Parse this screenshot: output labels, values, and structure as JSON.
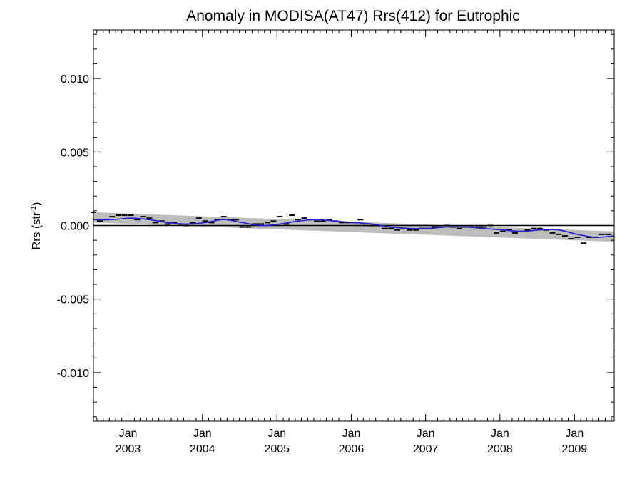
{
  "chart_data": {
    "type": "line",
    "title": "Anomaly in MODISA(AT47) Rrs(412) for Eutrophic",
    "ylabel_main": "Rrs (str",
    "ylabel_sup": "-1",
    "ylabel_close": ")",
    "ylim": [
      -0.0133,
      0.0133
    ],
    "xlim": [
      "2002-07-15",
      "2009-07-15"
    ],
    "grid": false,
    "yticks": [
      {
        "value": 0.01,
        "label": "0.010"
      },
      {
        "value": 0.005,
        "label": "0.005"
      },
      {
        "value": 0.0,
        "label": "0.000"
      },
      {
        "value": -0.005,
        "label": "-0.005"
      },
      {
        "value": -0.01,
        "label": "-0.010"
      }
    ],
    "xticks": [
      {
        "date": "2003-01-01",
        "month": "Jan",
        "year": "2003"
      },
      {
        "date": "2004-01-01",
        "month": "Jan",
        "year": "2004"
      },
      {
        "date": "2005-01-01",
        "month": "Jan",
        "year": "2005"
      },
      {
        "date": "2006-01-01",
        "month": "Jan",
        "year": "2006"
      },
      {
        "date": "2007-01-01",
        "month": "Jan",
        "year": "2007"
      },
      {
        "date": "2008-01-01",
        "month": "Jan",
        "year": "2008"
      },
      {
        "date": "2009-01-01",
        "month": "Jan",
        "year": "2009"
      }
    ],
    "monthly_anomaly": {
      "x": [
        "2002-07-15",
        "2002-08-15",
        "2002-09-15",
        "2002-10-15",
        "2002-11-15",
        "2002-12-15",
        "2003-01-15",
        "2003-02-15",
        "2003-03-15",
        "2003-04-15",
        "2003-05-15",
        "2003-06-15",
        "2003-07-15",
        "2003-08-15",
        "2003-09-15",
        "2003-10-15",
        "2003-11-15",
        "2003-12-15",
        "2004-01-15",
        "2004-02-15",
        "2004-03-15",
        "2004-04-15",
        "2004-05-15",
        "2004-06-15",
        "2004-07-15",
        "2004-08-15",
        "2004-09-15",
        "2004-10-15",
        "2004-11-15",
        "2004-12-15",
        "2005-01-15",
        "2005-02-15",
        "2005-03-15",
        "2005-04-15",
        "2005-05-15",
        "2005-06-15",
        "2005-07-15",
        "2005-08-15",
        "2005-09-15",
        "2005-10-15",
        "2005-11-15",
        "2005-12-15",
        "2006-01-15",
        "2006-02-15",
        "2006-03-15",
        "2006-04-15",
        "2006-05-15",
        "2006-06-15",
        "2006-07-15",
        "2006-08-15",
        "2006-09-15",
        "2006-10-15",
        "2006-11-15",
        "2006-12-15",
        "2007-01-15",
        "2007-02-15",
        "2007-03-15",
        "2007-04-15",
        "2007-05-15",
        "2007-06-15",
        "2007-07-15",
        "2007-08-15",
        "2007-09-15",
        "2007-10-15",
        "2007-11-15",
        "2007-12-15",
        "2008-01-15",
        "2008-02-15",
        "2008-03-15",
        "2008-04-15",
        "2008-05-15",
        "2008-06-15",
        "2008-07-15",
        "2008-08-15",
        "2008-09-15",
        "2008-10-15",
        "2008-11-15",
        "2008-12-15",
        "2009-01-15",
        "2009-02-15",
        "2009-03-15",
        "2009-04-15",
        "2009-05-15",
        "2009-06-15"
      ],
      "y": [
        0.0009,
        0.0003,
        0.0004,
        0.0006,
        0.0007,
        0.0007,
        0.0007,
        0.0004,
        0.0006,
        0.0005,
        0.0002,
        0.0003,
        0.0001,
        0.0002,
        0.0001,
        0.0,
        0.0002,
        0.0005,
        0.0003,
        0.0002,
        0.0004,
        0.0006,
        0.0004,
        0.0004,
        -0.0001,
        -0.0001,
        0.0001,
        0.0001,
        0.0002,
        0.0003,
        0.0006,
        0.0001,
        0.0007,
        0.0004,
        0.0005,
        0.0004,
        0.0003,
        0.0003,
        0.0004,
        0.0003,
        0.0002,
        0.0002,
        0.0002,
        0.0004,
        0.0,
        0.0,
        0.0,
        -0.0002,
        -0.0002,
        -0.0003,
        -0.0002,
        -0.0003,
        -0.0003,
        -0.0002,
        -0.0002,
        -0.0001,
        -0.0001,
        0.0,
        -0.0001,
        -0.0002,
        -0.0001,
        -0.0001,
        -0.0001,
        -0.0001,
        0.0,
        -0.0005,
        -0.0004,
        -0.0003,
        -0.0005,
        -0.0004,
        -0.0003,
        -0.0002,
        -0.0002,
        -0.0003,
        -0.0005,
        -0.0006,
        -0.0007,
        -0.0009,
        -0.0008,
        -0.0012,
        -0.0008,
        -0.0008,
        -0.0006,
        -0.0006
      ]
    },
    "smoothed_series": {
      "x": [
        "2002-07-15",
        "2002-10-15",
        "2003-01-15",
        "2003-04-15",
        "2003-07-15",
        "2003-10-15",
        "2004-01-15",
        "2004-04-15",
        "2004-07-15",
        "2004-10-15",
        "2005-01-15",
        "2005-04-15",
        "2005-07-15",
        "2005-10-15",
        "2006-01-15",
        "2006-04-15",
        "2006-07-15",
        "2006-10-15",
        "2007-01-15",
        "2007-04-15",
        "2007-07-15",
        "2007-10-15",
        "2008-01-15",
        "2008-04-15",
        "2008-07-15",
        "2008-10-15",
        "2009-01-15",
        "2009-04-15",
        "2009-07-15"
      ],
      "y": [
        0.0004,
        0.0004,
        0.0005,
        0.0004,
        0.0002,
        0.0001,
        0.0002,
        0.0004,
        0.0002,
        0.0,
        0.0001,
        0.0003,
        0.0004,
        0.0003,
        0.0002,
        0.0001,
        -0.0001,
        -0.0002,
        -0.0002,
        -0.0001,
        -0.0001,
        -0.0002,
        -0.0003,
        -0.0004,
        -0.0003,
        -0.0003,
        -0.0006,
        -0.0008,
        -0.0007
      ]
    },
    "trend_band": {
      "x": [
        "2002-07-15",
        "2009-07-15"
      ],
      "upper": [
        0.0009,
        -0.0004
      ],
      "lower": [
        0.0002,
        -0.0011
      ]
    },
    "colors": {
      "smoothed": "#1f1fd0",
      "band": "#bdbdbd",
      "markers": "#000000",
      "zero_line": "#000000"
    }
  }
}
